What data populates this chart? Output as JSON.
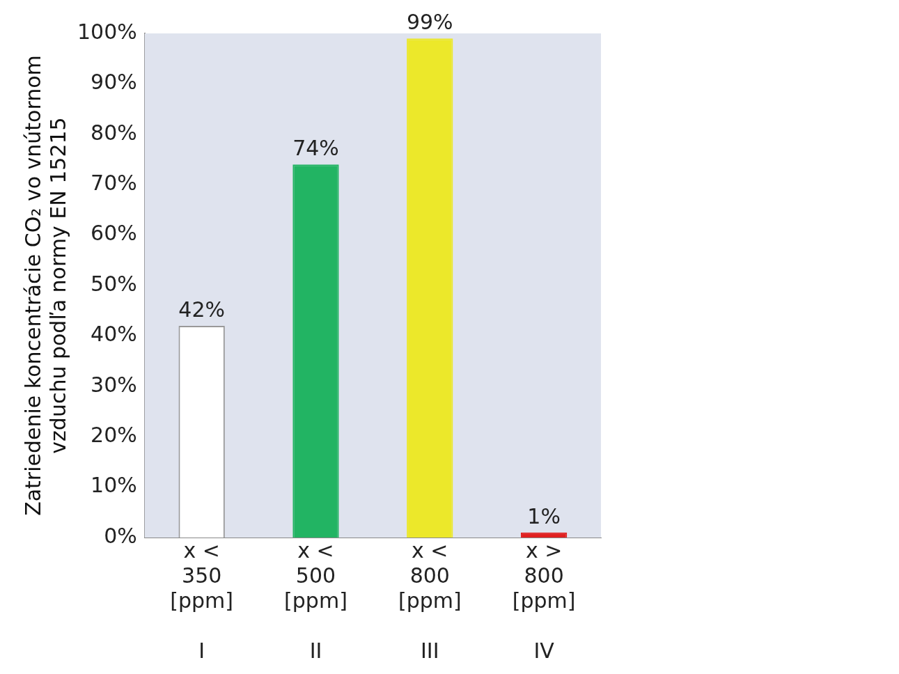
{
  "chart_data": {
    "type": "bar",
    "ylabel": "Zatriedenie koncentrácie CO₂ vo vnútornom\nvzduchu podľa normy EN 15215",
    "categories": [
      "x <\n350\n[ppm]\n\nI",
      "x <\n500\n[ppm]\n\nII",
      "x <\n800\n[ppm]\n\nIII",
      "x >\n800\n[ppm]\n\nIV"
    ],
    "values": [
      42,
      74,
      99,
      1
    ],
    "value_labels": [
      "42%",
      "74%",
      "99%",
      "1%"
    ],
    "colors": [
      "#ffffff",
      "#22b463",
      "#ece82a",
      "#e02020"
    ],
    "ylim": [
      0,
      100
    ],
    "yticks": [
      {
        "value": 0,
        "label": "0%"
      },
      {
        "value": 10,
        "label": "10%"
      },
      {
        "value": 20,
        "label": "20%"
      },
      {
        "value": 30,
        "label": "30%"
      },
      {
        "value": 40,
        "label": "40%"
      },
      {
        "value": 50,
        "label": "50%"
      },
      {
        "value": 60,
        "label": "60%"
      },
      {
        "value": 70,
        "label": "70%"
      },
      {
        "value": 80,
        "label": "80%"
      },
      {
        "value": 90,
        "label": "90%"
      },
      {
        "value": 100,
        "label": "100%"
      }
    ],
    "grid": false,
    "legend": false
  }
}
